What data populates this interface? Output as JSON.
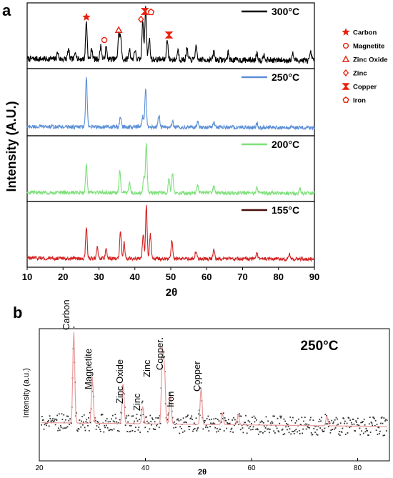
{
  "panel_a": {
    "label": "a",
    "ylabel": "Intensity (A.U.)",
    "xlabel": "2θ",
    "legend": [
      {
        "symbol": "star",
        "label": "Carbon"
      },
      {
        "symbol": "circle",
        "label": "Magnetite"
      },
      {
        "symbol": "triangle",
        "label": "Zinc Oxide"
      },
      {
        "symbol": "diamond",
        "label": "Zinc"
      },
      {
        "symbol": "bowtie",
        "label": "Copper"
      },
      {
        "symbol": "pentagon",
        "label": "Iron"
      }
    ]
  },
  "panel_b": {
    "label": "b",
    "ylabel": "Intensity (a.u.)",
    "xlabel": "2θ",
    "temperature": "250°C"
  },
  "colors": {
    "marker": "#e8220e",
    "t300": "#000000",
    "t250": "#5b8fd6",
    "t200": "#7ee07a",
    "t155": "#d42020",
    "t155_legend": "#4a0d0d",
    "fit_b": "#e89a9a",
    "points_b": "#333333"
  },
  "chart_data": [
    {
      "type": "line",
      "panel": "a",
      "xlabel": "2θ",
      "ylabel": "Intensity (A.U.)",
      "xlim": [
        10,
        90
      ],
      "xticks": [
        10,
        20,
        30,
        40,
        50,
        60,
        70,
        80,
        90
      ],
      "series": [
        {
          "name": "300°C",
          "color": "#000000",
          "peaks": [
            [
              18.5,
              0.12
            ],
            [
              21.5,
              0.18
            ],
            [
              23.5,
              0.15
            ],
            [
              26.5,
              0.72
            ],
            [
              28,
              0.2
            ],
            [
              30.5,
              0.25
            ],
            [
              32,
              0.22
            ],
            [
              35.5,
              0.45
            ],
            [
              36,
              0.42
            ],
            [
              38.5,
              0.2
            ],
            [
              40,
              0.18
            ],
            [
              42.2,
              0.75
            ],
            [
              43,
              0.98
            ],
            [
              44,
              0.4
            ],
            [
              49,
              0.4
            ],
            [
              52,
              0.18
            ],
            [
              54.5,
              0.2
            ],
            [
              57,
              0.25
            ],
            [
              62,
              0.16
            ],
            [
              66,
              0.14
            ],
            [
              74,
              0.14
            ],
            [
              76,
              0.12
            ],
            [
              84,
              0.12
            ],
            [
              89,
              0.14
            ]
          ],
          "markers": [
            {
              "symbol": "star",
              "x": 26.5
            },
            {
              "symbol": "circle",
              "x": 31.5
            },
            {
              "symbol": "triangle",
              "x": 35.5
            },
            {
              "symbol": "diamond",
              "x": 41.7
            },
            {
              "symbol": "bowtie",
              "x": 42.8
            },
            {
              "symbol": "pentagon",
              "x": 44.5
            },
            {
              "symbol": "bowtie",
              "x": 49.5
            }
          ]
        },
        {
          "name": "250°C",
          "color": "#5b8fd6",
          "peaks": [
            [
              26.5,
              0.92
            ],
            [
              36,
              0.18
            ],
            [
              42.2,
              0.2
            ],
            [
              43,
              0.72
            ],
            [
              46.7,
              0.22
            ],
            [
              50.5,
              0.1
            ],
            [
              57.5,
              0.1
            ],
            [
              62,
              0.1
            ],
            [
              74,
              0.08
            ]
          ]
        },
        {
          "name": "200°C",
          "color": "#7ee07a",
          "peaks": [
            [
              26.5,
              0.55
            ],
            [
              35.8,
              0.4
            ],
            [
              38.5,
              0.18
            ],
            [
              42.5,
              0.3
            ],
            [
              43.2,
              0.92
            ],
            [
              49.5,
              0.3
            ],
            [
              50.5,
              0.38
            ],
            [
              57.5,
              0.16
            ],
            [
              62,
              0.12
            ],
            [
              74,
              0.12
            ],
            [
              86,
              0.1
            ]
          ]
        },
        {
          "name": "155°C",
          "color": "#d42020",
          "peaks": [
            [
              26.5,
              0.58
            ],
            [
              29.5,
              0.2
            ],
            [
              32,
              0.18
            ],
            [
              36,
              0.5
            ],
            [
              37,
              0.3
            ],
            [
              42.3,
              0.45
            ],
            [
              43.2,
              0.98
            ],
            [
              44.3,
              0.45
            ],
            [
              50.3,
              0.35
            ],
            [
              57,
              0.15
            ],
            [
              62,
              0.18
            ],
            [
              74,
              0.12
            ],
            [
              83,
              0.1
            ]
          ]
        }
      ]
    },
    {
      "type": "scatter",
      "panel": "b",
      "title": "250°C",
      "xlabel": "2θ",
      "ylabel": "Intensity (a.u.)",
      "xlim": [
        20,
        86
      ],
      "xticks": [
        20,
        40,
        60,
        80
      ],
      "peaks": [
        {
          "x": 26.5,
          "h": 0.95,
          "label": "Carbon"
        },
        {
          "x": 30.0,
          "h": 0.48,
          "label": "Magnetite"
        },
        {
          "x": 35.8,
          "h": 0.42,
          "label": "Zinc Oxide"
        },
        {
          "x": 39.5,
          "h": 0.18,
          "label": "Zinc"
        },
        {
          "x": 43.2,
          "h": 0.75,
          "label": "Zinc"
        },
        {
          "x": 43.6,
          "h": 0.55,
          "label": "Copper"
        },
        {
          "x": 44.7,
          "h": 0.3,
          "label": "Iron"
        },
        {
          "x": 50.5,
          "h": 0.38,
          "label": "Copper"
        },
        {
          "x": 54.5,
          "h": 0.12
        },
        {
          "x": 57.5,
          "h": 0.1
        },
        {
          "x": 74.2,
          "h": 0.1
        }
      ]
    }
  ]
}
